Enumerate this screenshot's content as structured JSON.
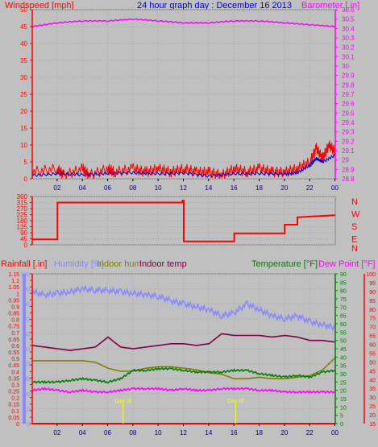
{
  "chart_data": [
    {
      "type": "line",
      "title": "24 hour graph day : December 16 2013",
      "ylabel_left": "Windspeed [mph]",
      "ylabel_right": "Barometer [.in]",
      "x_ticks": [
        "02",
        "04",
        "06",
        "08",
        "10",
        "12",
        "14",
        "16",
        "18",
        "20",
        "22",
        "00"
      ],
      "y_left_ticks": [
        "0",
        "5",
        "10",
        "15",
        "20",
        "25",
        "30",
        "35",
        "40",
        "45",
        "50"
      ],
      "y_right_ticks": [
        "28.8",
        "28.9",
        "29",
        "29.1",
        "29.2",
        "29.3",
        "29.4",
        "29.5",
        "29.6",
        "29.7",
        "29.8",
        "29.9",
        "30",
        "30.1",
        "30.2",
        "30.3",
        "30.4",
        "30.5",
        "30.6"
      ],
      "y_left_range": [
        0,
        50
      ],
      "y_right_range": [
        28.8,
        30.6
      ],
      "series": [
        {
          "key": "gust",
          "color": "#ff0000",
          "x": [
            0,
            2,
            2.5,
            4,
            4.5,
            6,
            6.5,
            8,
            9,
            10,
            11,
            12,
            13,
            14,
            15,
            16,
            17,
            18,
            19,
            20,
            21,
            22,
            22.5,
            23,
            23.5,
            24
          ],
          "y": [
            2,
            3,
            1,
            3,
            1,
            3,
            2,
            3,
            2,
            3,
            2,
            3,
            2,
            2,
            1,
            3,
            2,
            3,
            2,
            2,
            3,
            5,
            9,
            6,
            10,
            8
          ]
        },
        {
          "key": "speed",
          "color": "#0000cc",
          "x": [
            0,
            2,
            4,
            6,
            8,
            10,
            12,
            14,
            16,
            18,
            20,
            21,
            22,
            22.5,
            23,
            24
          ],
          "y": [
            1,
            1.5,
            1.2,
            1.6,
            1.8,
            1.5,
            1.7,
            0.8,
            1.5,
            1.6,
            1.4,
            1.8,
            4,
            6,
            5,
            7
          ]
        },
        {
          "key": "barometer",
          "color": "#ff00ff",
          "x": [
            0,
            2,
            4,
            6,
            8,
            10,
            12,
            14,
            16,
            18,
            20,
            22,
            24
          ],
          "y": [
            30.42,
            30.46,
            30.48,
            30.48,
            30.5,
            30.48,
            30.46,
            30.46,
            30.48,
            30.48,
            30.46,
            30.44,
            30.42
          ]
        }
      ]
    },
    {
      "type": "line",
      "y_left_ticks": [
        "0",
        "45",
        "90",
        "135",
        "180",
        "225",
        "270",
        "315",
        "360"
      ],
      "y_right_labels": [
        "N",
        "W",
        "S",
        "E",
        "N"
      ],
      "y_range": [
        0,
        360
      ],
      "series": [
        {
          "key": "wind_direction",
          "color": "#ff0000",
          "x": [
            0,
            2,
            2,
            11.9,
            11.9,
            12,
            12,
            16,
            16,
            20,
            20,
            21,
            21,
            24
          ],
          "y": [
            40,
            40,
            315,
            315,
            330,
            330,
            25,
            25,
            85,
            85,
            150,
            150,
            205,
            220
          ]
        }
      ]
    },
    {
      "type": "line",
      "labels": [
        "Rainfall [.in]",
        "Humidity [%]",
        "Indoor hum",
        "Indoor temp",
        "Temperature [°F]",
        "Dew Point [°F]"
      ],
      "y_rain_ticks": [
        "0",
        "0.05",
        "0.1",
        "0.15",
        "0.2",
        "0.25",
        "0.3",
        "0.35",
        "0.4",
        "0.45",
        "0.5",
        "0.55",
        "0.6",
        "0.65",
        "0.7",
        "0.75",
        "0.8",
        "0.85",
        "0.9",
        "0.95",
        "1",
        "1.05",
        "1.1",
        "1.15"
      ],
      "y_hum_ticks": [
        "0",
        "10",
        "20",
        "30",
        "40",
        "50",
        "60",
        "70",
        "80",
        "90",
        "100"
      ],
      "y_temp_ticks": [
        "0",
        "5",
        "10",
        "15",
        "20",
        "25",
        "30",
        "35",
        "40",
        "45",
        "50",
        "55",
        "60",
        "65",
        "70",
        "75",
        "80",
        "85",
        "90"
      ],
      "y_dew_ticks": [
        "15",
        "20",
        "25",
        "30",
        "35",
        "40",
        "45",
        "50",
        "55",
        "60",
        "65",
        "70",
        "75",
        "80",
        "85",
        "90",
        "95",
        "100"
      ],
      "rain_range": [
        0,
        1.15
      ],
      "hum_range": [
        0,
        100
      ],
      "temp_range": [
        0,
        90
      ],
      "annotations": [
        {
          "text": "Day of",
          "x": 7.2
        },
        {
          "text": "Day of",
          "x": 16.1
        }
      ],
      "series": [
        {
          "key": "humidity",
          "color": "#8888ff",
          "scale": "hum",
          "x": [
            0,
            1,
            2,
            3,
            4,
            5,
            6,
            7,
            8,
            9,
            10,
            11,
            12,
            13,
            14,
            15,
            16,
            17,
            18,
            19,
            20,
            21,
            22,
            23,
            24
          ],
          "y": [
            88,
            86,
            87,
            88,
            90,
            89,
            89,
            88,
            87,
            86,
            85,
            82,
            80,
            78,
            76,
            72,
            74,
            80,
            76,
            72,
            70,
            72,
            68,
            66,
            64
          ]
        },
        {
          "key": "indoor_temp",
          "color": "#800040",
          "scale": "temp",
          "x": [
            0,
            1,
            2,
            3,
            4,
            5,
            6,
            7,
            8,
            9,
            10,
            11,
            12,
            13,
            14,
            15,
            16,
            17,
            18,
            19,
            20,
            21,
            22,
            23,
            24
          ],
          "y": [
            47,
            46,
            45,
            44,
            45,
            46,
            52,
            46,
            45,
            46,
            47,
            48,
            48,
            47,
            48,
            54,
            53,
            53,
            53,
            52,
            53,
            52,
            50,
            50,
            49
          ]
        },
        {
          "key": "indoor_hum",
          "color": "#808000",
          "scale": "hum",
          "x": [
            0,
            1,
            2,
            3,
            4,
            5,
            6,
            7,
            8,
            9,
            10,
            11,
            12,
            13,
            14,
            15,
            16,
            17,
            18,
            19,
            20,
            21,
            22,
            23,
            24
          ],
          "y": [
            42,
            42,
            42,
            42,
            42,
            41,
            37,
            35,
            35,
            37,
            38,
            38,
            37,
            36,
            34,
            33,
            30,
            30,
            31,
            30,
            30,
            31,
            32,
            36,
            44
          ]
        },
        {
          "key": "temperature",
          "color": "#008000",
          "scale": "temp",
          "x": [
            0,
            1,
            2,
            3,
            4,
            5,
            6,
            7,
            8,
            9,
            10,
            11,
            12,
            13,
            14,
            15,
            16,
            17,
            18,
            19,
            20,
            21,
            22,
            23,
            24
          ],
          "y": [
            25,
            25,
            25,
            26,
            27,
            26,
            25,
            27,
            32,
            32,
            33,
            33,
            32,
            31,
            31,
            31,
            32,
            32,
            30,
            29,
            28,
            29,
            28,
            31,
            32
          ]
        },
        {
          "key": "dew_point",
          "color": "#ff00ff",
          "scale": "temp",
          "x": [
            0,
            1,
            2,
            3,
            4,
            5,
            6,
            7,
            8,
            9,
            10,
            11,
            12,
            13,
            14,
            15,
            16,
            17,
            18,
            19,
            20,
            21,
            22,
            23,
            24
          ],
          "y": [
            20,
            21,
            20,
            19,
            20,
            19,
            19,
            20,
            21,
            21,
            21,
            20,
            21,
            20,
            20,
            21,
            21,
            21,
            20,
            20,
            19,
            19,
            19,
            19,
            19
          ]
        },
        {
          "key": "rainfall",
          "color": "#ff0000",
          "scale": "rain",
          "x": [
            0,
            24
          ],
          "y": [
            0,
            0
          ]
        }
      ]
    }
  ]
}
